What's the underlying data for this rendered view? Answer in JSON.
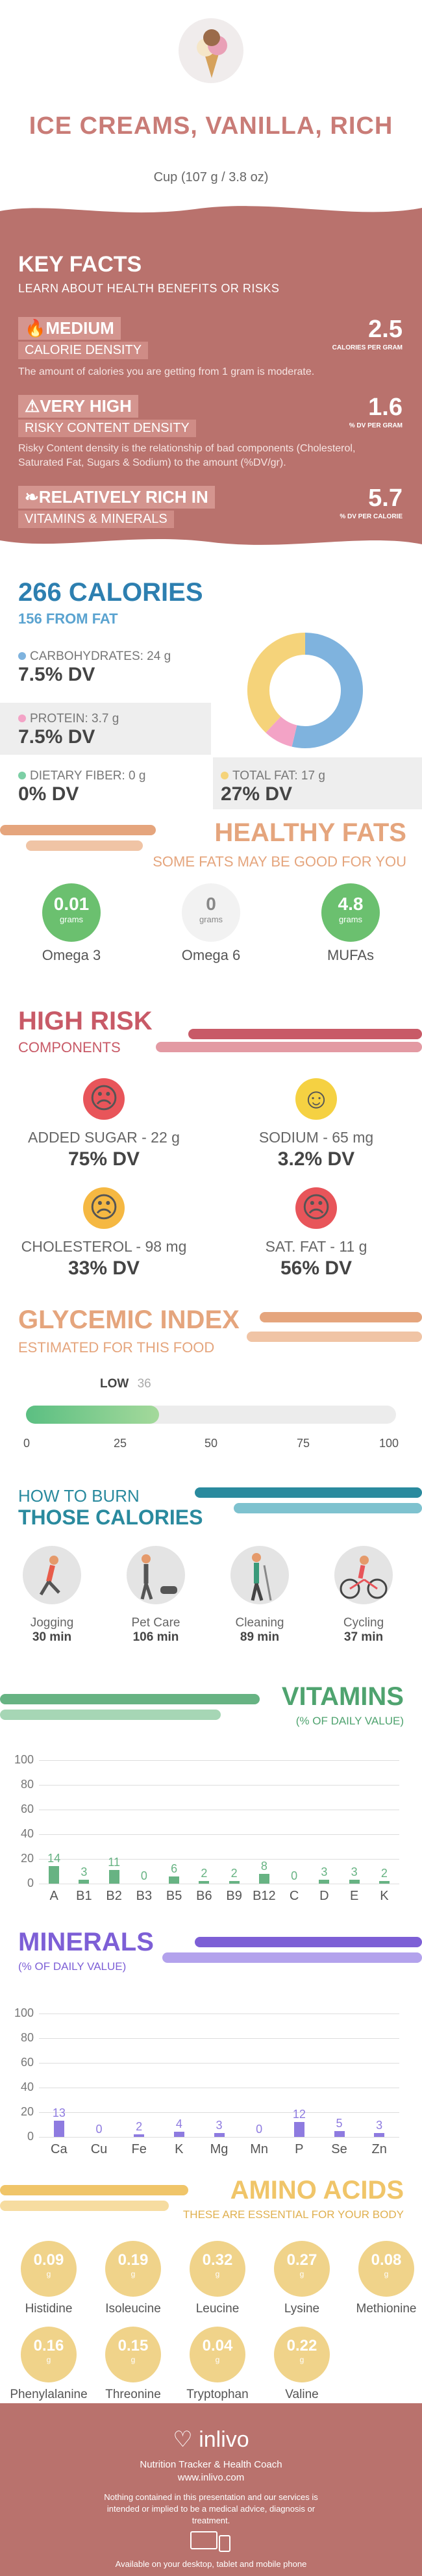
{
  "header": {
    "title": "ICE CREAMS, VANILLA, RICH",
    "serving": "Cup (107 g / 3.8 oz)"
  },
  "key_facts": {
    "title": "KEY FACTS",
    "subtitle": "LEARN ABOUT HEALTH BENEFITS OR RISKS",
    "facts": [
      {
        "label": "MEDIUM",
        "label2": "CALORIE DENSITY",
        "desc": "The amount of calories you are getting from 1 gram is moderate.",
        "value": "2.5",
        "unit": "CALORIES PER GRAM",
        "icon": "flame-icon"
      },
      {
        "label": "VERY HIGH",
        "label2": "RISKY CONTENT DENSITY",
        "desc": "Risky Content density is the relationship of bad components (Cholesterol, Saturated Fat, Sugars & Sodium) to the amount (%DV/gr).",
        "value": "1.6",
        "unit": "% DV PER GRAM",
        "icon": "warning-icon"
      },
      {
        "label": "RELATIVELY RICH IN",
        "label2": "VITAMINS & MINERALS",
        "desc": "",
        "value": "5.7",
        "unit": "% DV PER CALORIE",
        "icon": "leaf-icon"
      }
    ]
  },
  "calories": {
    "title": "266 CALORIES",
    "from_fat": "156 FROM FAT",
    "macros": [
      {
        "name": "CARBOHYDRATES: 24 g",
        "dv": "7.5% DV",
        "color": "#7fb3de"
      },
      {
        "name": "PROTEIN: 3.7 g",
        "dv": "7.5% DV",
        "color": "#f3a3c6"
      },
      {
        "name": "DIETARY FIBER: 0 g",
        "dv": "0% DV",
        "color": "#7ccfa5"
      },
      {
        "name": "TOTAL FAT: 17 g",
        "dv": "27% DV",
        "color": "#f5d37a"
      }
    ],
    "donut": [
      {
        "value": 24,
        "color": "#7fb3de"
      },
      {
        "value": 3.7,
        "color": "#f3a3c6"
      },
      {
        "value": 17,
        "color": "#f5d37a"
      }
    ]
  },
  "healthy_fats": {
    "title": "HEALTHY FATS",
    "subtitle": "SOME FATS MAY BE GOOD FOR YOU",
    "items": [
      {
        "value": "0.01",
        "unit": "grams",
        "name": "Omega 3"
      },
      {
        "value": "0",
        "unit": "grams",
        "name": "Omega 6"
      },
      {
        "value": "4.8",
        "unit": "grams",
        "name": "MUFAs"
      }
    ]
  },
  "high_risk": {
    "title": "HIGH RISK",
    "subtitle": "COMPONENTS",
    "items": [
      {
        "name": "ADDED SUGAR - 22 g",
        "dv": "75% DV",
        "face": "☹",
        "color": "#e8555a"
      },
      {
        "name": "SODIUM - 65 mg",
        "dv": "3.2% DV",
        "face": "☺",
        "color": "#f5d142"
      },
      {
        "name": "CHOLESTEROL - 98 mg",
        "dv": "33% DV",
        "face": "☹",
        "color": "#f5b842"
      },
      {
        "name": "SAT. FAT - 11 g",
        "dv": "56% DV",
        "face": "☹",
        "color": "#e8555a"
      }
    ]
  },
  "glycemic": {
    "title": "GLYCEMIC INDEX",
    "subtitle": "ESTIMATED FOR THIS FOOD",
    "level": "LOW",
    "value": "36",
    "value_num": 36,
    "ticks": [
      "0",
      "25",
      "50",
      "75",
      "100"
    ]
  },
  "burn": {
    "title1": "HOW TO BURN",
    "title2": "THOSE CALORIES",
    "items": [
      {
        "name": "Jogging",
        "mins": "30 min"
      },
      {
        "name": "Pet Care",
        "mins": "106 min"
      },
      {
        "name": "Cleaning",
        "mins": "89 min"
      },
      {
        "name": "Cycling",
        "mins": "37 min"
      }
    ]
  },
  "vitamins": {
    "title": "VITAMINS",
    "subtitle": "(% OF DAILY VALUE)",
    "yticks": [
      "100",
      "80",
      "60",
      "40",
      "20",
      "0"
    ],
    "color": "#67b383",
    "bars": [
      {
        "label": "A",
        "value": 14
      },
      {
        "label": "B1",
        "value": 3
      },
      {
        "label": "B2",
        "value": 11
      },
      {
        "label": "B3",
        "value": 0
      },
      {
        "label": "B5",
        "value": 6
      },
      {
        "label": "B6",
        "value": 2
      },
      {
        "label": "B9",
        "value": 2
      },
      {
        "label": "B12",
        "value": 8
      },
      {
        "label": "C",
        "value": 0
      },
      {
        "label": "D",
        "value": 3
      },
      {
        "label": "E",
        "value": 3
      },
      {
        "label": "K",
        "value": 2
      }
    ]
  },
  "minerals": {
    "title": "MINERALS",
    "subtitle": "(% OF DAILY VALUE)",
    "yticks": [
      "100",
      "80",
      "60",
      "40",
      "20",
      "0"
    ],
    "color": "#8e7be0",
    "bars": [
      {
        "label": "Ca",
        "value": 13
      },
      {
        "label": "Cu",
        "value": 0
      },
      {
        "label": "Fe",
        "value": 2
      },
      {
        "label": "K",
        "value": 4
      },
      {
        "label": "Mg",
        "value": 3
      },
      {
        "label": "Mn",
        "value": 0
      },
      {
        "label": "P",
        "value": 12
      },
      {
        "label": "Se",
        "value": 5
      },
      {
        "label": "Zn",
        "value": 3
      }
    ]
  },
  "amino": {
    "title": "AMINO ACIDS",
    "subtitle": "THESE ARE ESSENTIAL FOR YOUR BODY",
    "unit": "g",
    "items": [
      {
        "value": "0.09",
        "name": "Histidine"
      },
      {
        "value": "0.19",
        "name": "Isoleucine"
      },
      {
        "value": "0.32",
        "name": "Leucine"
      },
      {
        "value": "0.27",
        "name": "Lysine"
      },
      {
        "value": "0.08",
        "name": "Methionine"
      },
      {
        "value": "0.16",
        "name": "Phenylalanine"
      },
      {
        "value": "0.15",
        "name": "Threonine"
      },
      {
        "value": "0.04",
        "name": "Tryptophan"
      },
      {
        "value": "0.22",
        "name": "Valine"
      }
    ]
  },
  "footer": {
    "brand": "inlivo",
    "tagline": "Nutrition Tracker & Health Coach",
    "url": "www.inlivo.com",
    "disclaimer": "Nothing contained in this presentation and our services is intended or implied to be a medical advice, diagnosis or treatment.",
    "available": "Available on your desktop, tablet and mobile phone"
  }
}
